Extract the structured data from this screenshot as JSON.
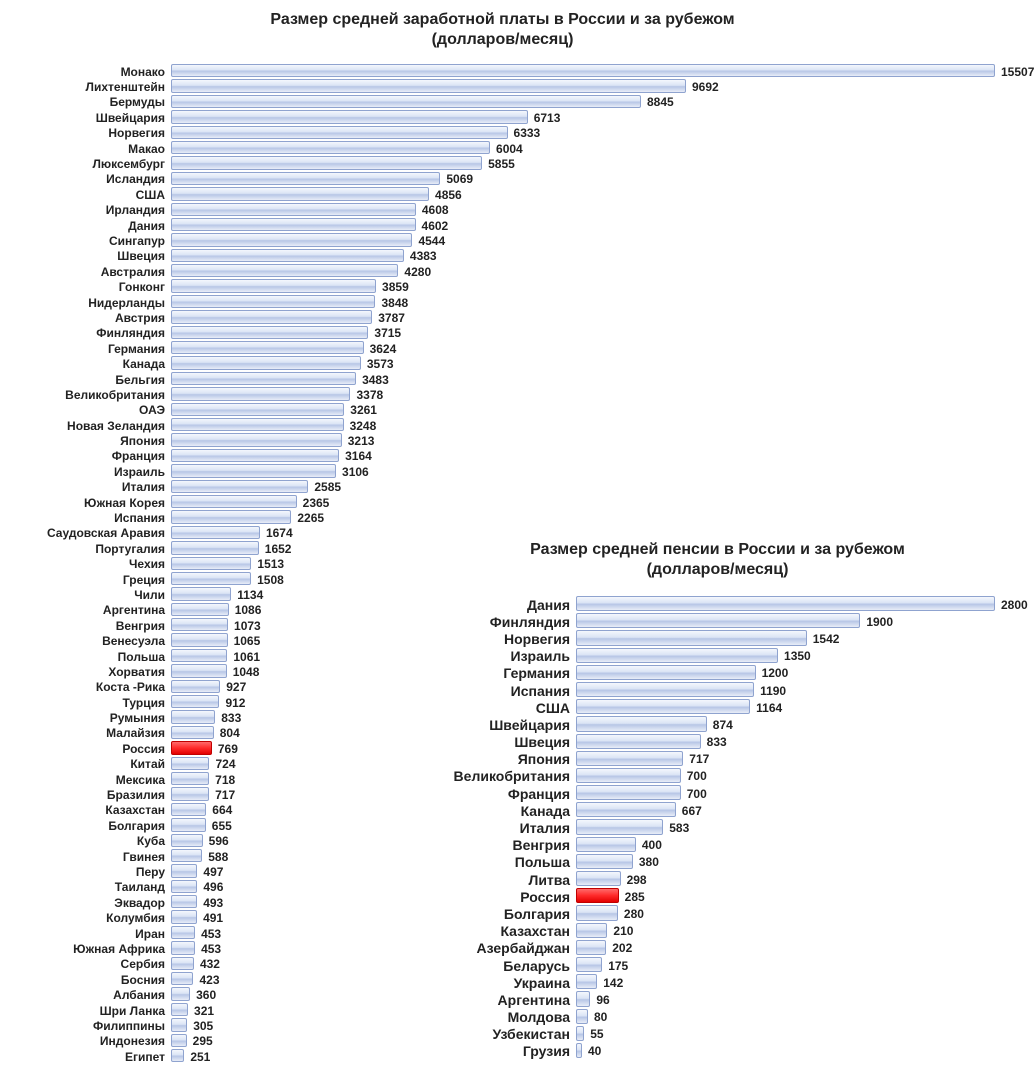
{
  "salary_chart": {
    "type": "horizontal_bar",
    "title_line1": "Размер средней заработной платы в России и за рубежом",
    "title_line2": "(долларов/месяц)",
    "title_fontsize": 16,
    "label_width": 155,
    "label_fontsize": 12,
    "value_fontsize": 12,
    "row_height": 15.4,
    "row_gap": 0,
    "max_value": 15507,
    "bar_area_width": 810,
    "bar_colors": {
      "border": "#8fa3cf",
      "highlight": "#ff0000"
    },
    "highlight_country": "Россия",
    "data": [
      {
        "label": "Монако",
        "value": 15507
      },
      {
        "label": "Лихтенштейн",
        "value": 9692
      },
      {
        "label": "Бермуды",
        "value": 8845
      },
      {
        "label": "Швейцария",
        "value": 6713
      },
      {
        "label": "Норвегия",
        "value": 6333
      },
      {
        "label": "Макао",
        "value": 6004
      },
      {
        "label": "Люксембург",
        "value": 5855
      },
      {
        "label": "Исландия",
        "value": 5069
      },
      {
        "label": "США",
        "value": 4856
      },
      {
        "label": "Ирландия",
        "value": 4608
      },
      {
        "label": "Дания",
        "value": 4602
      },
      {
        "label": "Сингапур",
        "value": 4544
      },
      {
        "label": "Швеция",
        "value": 4383
      },
      {
        "label": "Австралия",
        "value": 4280
      },
      {
        "label": "Гонконг",
        "value": 3859
      },
      {
        "label": "Нидерланды",
        "value": 3848
      },
      {
        "label": "Австрия",
        "value": 3787
      },
      {
        "label": "Финляндия",
        "value": 3715
      },
      {
        "label": "Германия",
        "value": 3624
      },
      {
        "label": "Канада",
        "value": 3573
      },
      {
        "label": "Бельгия",
        "value": 3483
      },
      {
        "label": "Великобритания",
        "value": 3378
      },
      {
        "label": "ОАЭ",
        "value": 3261
      },
      {
        "label": "Новая Зеландия",
        "value": 3248
      },
      {
        "label": "Япония",
        "value": 3213
      },
      {
        "label": "Франция",
        "value": 3164
      },
      {
        "label": "Израиль",
        "value": 3106
      },
      {
        "label": "Италия",
        "value": 2585
      },
      {
        "label": "Южная Корея",
        "value": 2365
      },
      {
        "label": "Испания",
        "value": 2265
      },
      {
        "label": "Саудовская Аравия",
        "value": 1674
      },
      {
        "label": "Португалия",
        "value": 1652
      },
      {
        "label": "Чехия",
        "value": 1513
      },
      {
        "label": "Греция",
        "value": 1508
      },
      {
        "label": "Чили",
        "value": 1134
      },
      {
        "label": "Аргентина",
        "value": 1086
      },
      {
        "label": "Венгрия",
        "value": 1073
      },
      {
        "label": "Венесуэла",
        "value": 1065
      },
      {
        "label": "Польша",
        "value": 1061
      },
      {
        "label": "Хорватия",
        "value": 1048
      },
      {
        "label": "Коста -Рика",
        "value": 927
      },
      {
        "label": "Турция",
        "value": 912
      },
      {
        "label": "Румыния",
        "value": 833
      },
      {
        "label": "Малайзия",
        "value": 804
      },
      {
        "label": "Россия",
        "value": 769
      },
      {
        "label": "Китай",
        "value": 724
      },
      {
        "label": "Мексика",
        "value": 718
      },
      {
        "label": "Бразилия",
        "value": 717
      },
      {
        "label": "Казахстан",
        "value": 664
      },
      {
        "label": "Болгария",
        "value": 655
      },
      {
        "label": "Куба",
        "value": 596
      },
      {
        "label": "Гвинея",
        "value": 588
      },
      {
        "label": "Перу",
        "value": 497
      },
      {
        "label": "Таиланд",
        "value": 496
      },
      {
        "label": "Эквадор",
        "value": 493
      },
      {
        "label": "Колумбия",
        "value": 491
      },
      {
        "label": "Иран",
        "value": 453
      },
      {
        "label": "Южная Африка",
        "value": 453
      },
      {
        "label": "Сербия",
        "value": 432
      },
      {
        "label": "Босния",
        "value": 423
      },
      {
        "label": "Албания",
        "value": 360
      },
      {
        "label": "Шри Ланка",
        "value": 321
      },
      {
        "label": "Филиппины",
        "value": 305
      },
      {
        "label": "Индонезия",
        "value": 295
      },
      {
        "label": "Египет",
        "value": 251
      }
    ]
  },
  "pension_chart": {
    "type": "horizontal_bar",
    "title_line1": "Размер средней пенсии в России и за рубежом",
    "title_line2": "(долларов/месяц)",
    "title_fontsize": 16,
    "label_width": 130,
    "label_fontsize": 14,
    "value_fontsize": 12,
    "row_height": 17.2,
    "row_gap": 0,
    "max_value": 2800,
    "bar_area_width": 395,
    "highlight_country": "Россия",
    "data": [
      {
        "label": "Дания",
        "value": 2800
      },
      {
        "label": "Финляндия",
        "value": 1900
      },
      {
        "label": "Норвегия",
        "value": 1542
      },
      {
        "label": "Израиль",
        "value": 1350
      },
      {
        "label": "Германия",
        "value": 1200
      },
      {
        "label": "Испания",
        "value": 1190
      },
      {
        "label": "США",
        "value": 1164
      },
      {
        "label": "Швейцария",
        "value": 874
      },
      {
        "label": "Швеция",
        "value": 833
      },
      {
        "label": "Япония",
        "value": 717
      },
      {
        "label": "Великобритания",
        "value": 700
      },
      {
        "label": "Франция",
        "value": 700
      },
      {
        "label": "Канада",
        "value": 667
      },
      {
        "label": "Италия",
        "value": 583
      },
      {
        "label": "Венгрия",
        "value": 400
      },
      {
        "label": "Польша",
        "value": 380
      },
      {
        "label": "Литва",
        "value": 298
      },
      {
        "label": "Россия",
        "value": 285
      },
      {
        "label": "Болгария",
        "value": 280
      },
      {
        "label": "Казахстан",
        "value": 210
      },
      {
        "label": "Азербайджан",
        "value": 202
      },
      {
        "label": "Беларусь",
        "value": 175
      },
      {
        "label": "Украина",
        "value": 142
      },
      {
        "label": "Аргентина",
        "value": 96
      },
      {
        "label": "Молдова",
        "value": 80
      },
      {
        "label": "Узбекистан",
        "value": 55
      },
      {
        "label": "Грузия",
        "value": 40
      }
    ]
  }
}
